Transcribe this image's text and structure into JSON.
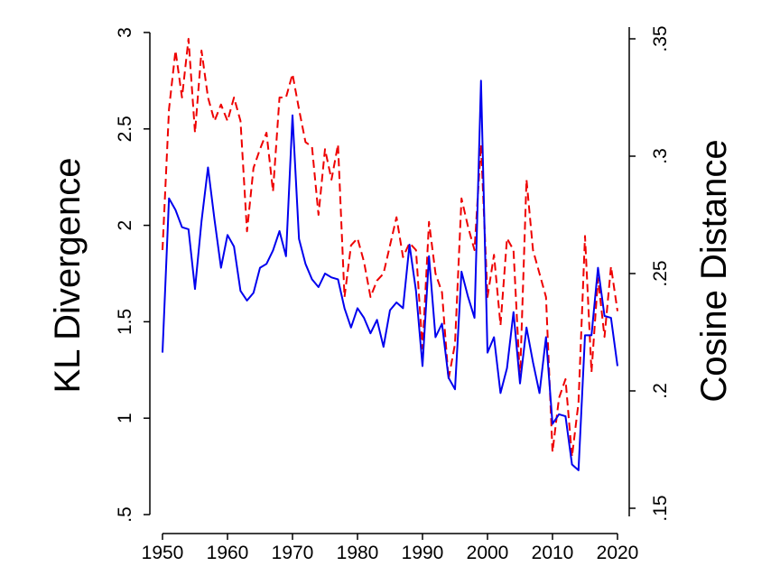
{
  "chart_data": {
    "type": "line",
    "title": "",
    "xlabel": "",
    "ylabel": "KL Divergence",
    "y2label": "Cosine Distance",
    "xlim": [
      1950,
      2020
    ],
    "ylim": [
      0.5,
      3.0
    ],
    "y2lim": [
      0.15,
      0.35
    ],
    "x_ticks": [
      "1950",
      "1960",
      "1970",
      "1980",
      "1990",
      "2000",
      "2010",
      "2020"
    ],
    "y_ticks": [
      {
        "value": 0.5,
        "label": ".5"
      },
      {
        "value": 1.0,
        "label": "1"
      },
      {
        "value": 1.5,
        "label": "1.5"
      },
      {
        "value": 2.0,
        "label": "2"
      },
      {
        "value": 2.5,
        "label": "2.5"
      },
      {
        "value": 3.0,
        "label": "3"
      }
    ],
    "y2_ticks": [
      {
        "value": 0.15,
        "label": ".15"
      },
      {
        "value": 0.2,
        "label": ".2"
      },
      {
        "value": 0.25,
        "label": ".25"
      },
      {
        "value": 0.3,
        "label": ".3"
      },
      {
        "value": 0.35,
        "label": ".35"
      }
    ],
    "x": [
      1950,
      1951,
      1952,
      1953,
      1954,
      1955,
      1956,
      1957,
      1958,
      1959,
      1960,
      1961,
      1962,
      1963,
      1964,
      1965,
      1966,
      1967,
      1968,
      1969,
      1970,
      1971,
      1972,
      1973,
      1974,
      1975,
      1976,
      1977,
      1978,
      1979,
      1980,
      1981,
      1982,
      1983,
      1984,
      1985,
      1986,
      1987,
      1988,
      1989,
      1990,
      1991,
      1992,
      1993,
      1994,
      1995,
      1996,
      1997,
      1998,
      1999,
      2000,
      2001,
      2002,
      2003,
      2004,
      2005,
      2006,
      2007,
      2008,
      2009,
      2010,
      2011,
      2012,
      2013,
      2014,
      2015,
      2016,
      2017,
      2018,
      2019,
      2020
    ],
    "series": [
      {
        "name": "KL Divergence",
        "axis": "left",
        "color": "#0000ee",
        "dash": "solid",
        "values": [
          1.34,
          2.14,
          2.08,
          1.99,
          1.98,
          1.67,
          2.02,
          2.3,
          2.03,
          1.78,
          1.95,
          1.89,
          1.66,
          1.61,
          1.65,
          1.78,
          1.8,
          1.87,
          1.97,
          1.84,
          2.57,
          1.93,
          1.8,
          1.72,
          1.68,
          1.75,
          1.73,
          1.72,
          1.57,
          1.47,
          1.57,
          1.52,
          1.44,
          1.51,
          1.37,
          1.56,
          1.6,
          1.57,
          1.9,
          1.66,
          1.27,
          1.84,
          1.42,
          1.49,
          1.21,
          1.15,
          1.76,
          1.63,
          1.52,
          2.75,
          1.34,
          1.42,
          1.13,
          1.26,
          1.55,
          1.18,
          1.47,
          1.29,
          1.13,
          1.42,
          0.97,
          1.02,
          1.01,
          0.76,
          0.73,
          1.43,
          1.43,
          1.78,
          1.53,
          1.52,
          1.27
        ]
      },
      {
        "name": "Cosine Distance",
        "axis": "right",
        "color": "#ee0000",
        "dash": "dashed",
        "values": [
          0.26,
          0.32,
          0.345,
          0.325,
          0.35,
          0.31,
          0.345,
          0.325,
          0.315,
          0.322,
          0.315,
          0.325,
          0.315,
          0.268,
          0.295,
          0.303,
          0.31,
          0.285,
          0.325,
          0.325,
          0.335,
          0.32,
          0.306,
          0.304,
          0.275,
          0.303,
          0.29,
          0.305,
          0.24,
          0.262,
          0.265,
          0.255,
          0.24,
          0.247,
          0.25,
          0.262,
          0.274,
          0.257,
          0.263,
          0.26,
          0.218,
          0.272,
          0.25,
          0.242,
          0.205,
          0.22,
          0.282,
          0.27,
          0.26,
          0.305,
          0.24,
          0.258,
          0.228,
          0.265,
          0.26,
          0.205,
          0.29,
          0.26,
          0.25,
          0.24,
          0.174,
          0.197,
          0.205,
          0.172,
          0.195,
          0.266,
          0.208,
          0.248,
          0.223,
          0.253,
          0.234
        ]
      }
    ]
  }
}
